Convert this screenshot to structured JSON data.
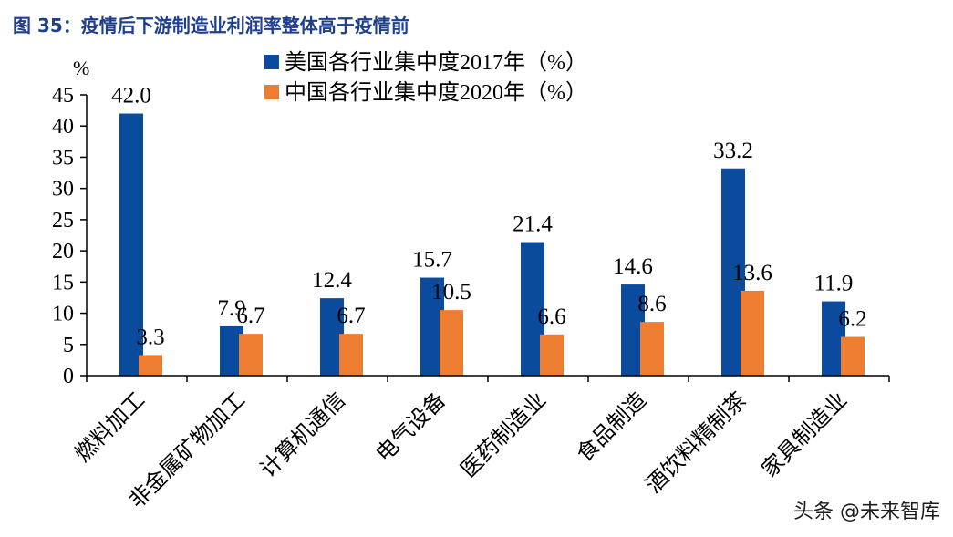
{
  "figure_title": "图 35：疫情后下游制造业利润率整体高于疫情前",
  "watermark": "头条 @未来智库",
  "colors": {
    "title": "#1f3f8c",
    "series1": "#0a4b9e",
    "series2": "#ed7d31",
    "axis": "#000000"
  },
  "chart_data": {
    "type": "bar",
    "unit_label": "%",
    "categories": [
      "燃料加工",
      "非金属矿物加工",
      "计算机通信",
      "电气设备",
      "医药制造业",
      "食品制造",
      "酒饮料精制茶",
      "家具制造业"
    ],
    "series": [
      {
        "name": "美国各行业集中度2017年（%）",
        "color": "#0a4b9e",
        "values": [
          42.0,
          7.9,
          12.4,
          15.7,
          21.4,
          14.6,
          33.2,
          11.9
        ]
      },
      {
        "name": "中国各行业集中度2020年（%）",
        "color": "#ed7d31",
        "values": [
          3.3,
          6.7,
          6.7,
          10.5,
          6.6,
          8.6,
          13.6,
          6.2
        ]
      }
    ],
    "ylim": [
      0,
      45
    ],
    "yticks": [
      0,
      5,
      10,
      15,
      20,
      25,
      30,
      35,
      40,
      45
    ],
    "data_labels": true,
    "grid": false,
    "legend_position": "top"
  }
}
